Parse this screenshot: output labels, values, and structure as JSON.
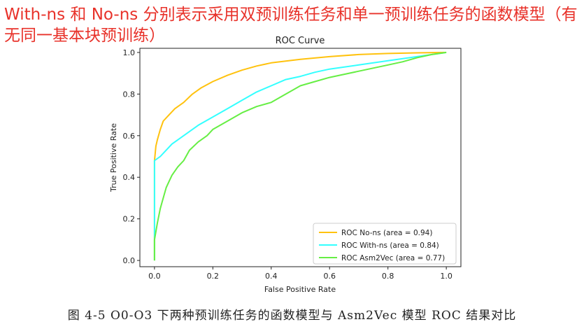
{
  "annotation": "With-ns 和 No-ns 分别表示采用双预训练任务和单一预训练任务的函数模型（有无同一基本块预训练）",
  "caption": "图 4-5    O0-O3 下两种预训练任务的函数模型与 Asm2Vec 模型 ROC 结果对比",
  "chart_data": {
    "type": "line",
    "title": "ROC Curve",
    "xlabel": "False Positive Rate",
    "ylabel": "True Positive Rate",
    "xlim": [
      -0.05,
      1.05
    ],
    "ylim": [
      -0.03,
      1.02
    ],
    "xticks": [
      "0.0",
      "0.2",
      "0.4",
      "0.6",
      "0.8",
      "1.0"
    ],
    "yticks": [
      "0.0",
      "0.2",
      "0.4",
      "0.6",
      "0.8",
      "1.0"
    ],
    "grid": false,
    "legend_position": "lower-right",
    "series": [
      {
        "name": "ROC No-ns (area = 0.94)",
        "color": "#ffc20e",
        "points": [
          [
            0,
            0
          ],
          [
            0,
            0.48
          ],
          [
            0.005,
            0.55
          ],
          [
            0.01,
            0.58
          ],
          [
            0.02,
            0.63
          ],
          [
            0.03,
            0.67
          ],
          [
            0.05,
            0.7
          ],
          [
            0.07,
            0.73
          ],
          [
            0.1,
            0.76
          ],
          [
            0.13,
            0.8
          ],
          [
            0.16,
            0.83
          ],
          [
            0.2,
            0.86
          ],
          [
            0.25,
            0.89
          ],
          [
            0.3,
            0.915
          ],
          [
            0.35,
            0.935
          ],
          [
            0.4,
            0.95
          ],
          [
            0.5,
            0.967
          ],
          [
            0.6,
            0.98
          ],
          [
            0.7,
            0.99
          ],
          [
            0.8,
            0.995
          ],
          [
            0.9,
            0.998
          ],
          [
            1.0,
            1.0
          ]
        ]
      },
      {
        "name": "ROC With-ns (area = 0.84)",
        "color": "#33ffff",
        "points": [
          [
            0,
            0
          ],
          [
            0,
            0.48
          ],
          [
            0.02,
            0.5
          ],
          [
            0.04,
            0.53
          ],
          [
            0.06,
            0.56
          ],
          [
            0.1,
            0.6
          ],
          [
            0.15,
            0.65
          ],
          [
            0.2,
            0.69
          ],
          [
            0.25,
            0.73
          ],
          [
            0.3,
            0.77
          ],
          [
            0.35,
            0.81
          ],
          [
            0.4,
            0.84
          ],
          [
            0.45,
            0.87
          ],
          [
            0.5,
            0.885
          ],
          [
            0.55,
            0.905
          ],
          [
            0.6,
            0.92
          ],
          [
            0.7,
            0.94
          ],
          [
            0.8,
            0.96
          ],
          [
            0.9,
            0.98
          ],
          [
            0.95,
            0.99
          ],
          [
            1.0,
            1.0
          ]
        ]
      },
      {
        "name": "ROC Asm2Vec (area = 0.77)",
        "color": "#66ee44",
        "points": [
          [
            0,
            0
          ],
          [
            0,
            0.1
          ],
          [
            0.01,
            0.18
          ],
          [
            0.02,
            0.25
          ],
          [
            0.03,
            0.3
          ],
          [
            0.04,
            0.35
          ],
          [
            0.05,
            0.38
          ],
          [
            0.06,
            0.41
          ],
          [
            0.08,
            0.45
          ],
          [
            0.1,
            0.48
          ],
          [
            0.12,
            0.53
          ],
          [
            0.15,
            0.57
          ],
          [
            0.18,
            0.6
          ],
          [
            0.2,
            0.63
          ],
          [
            0.25,
            0.67
          ],
          [
            0.3,
            0.71
          ],
          [
            0.35,
            0.74
          ],
          [
            0.4,
            0.76
          ],
          [
            0.45,
            0.8
          ],
          [
            0.5,
            0.84
          ],
          [
            0.55,
            0.86
          ],
          [
            0.6,
            0.88
          ],
          [
            0.7,
            0.91
          ],
          [
            0.8,
            0.94
          ],
          [
            0.85,
            0.955
          ],
          [
            0.9,
            0.975
          ],
          [
            0.95,
            0.99
          ],
          [
            1.0,
            1.0
          ]
        ]
      }
    ]
  }
}
